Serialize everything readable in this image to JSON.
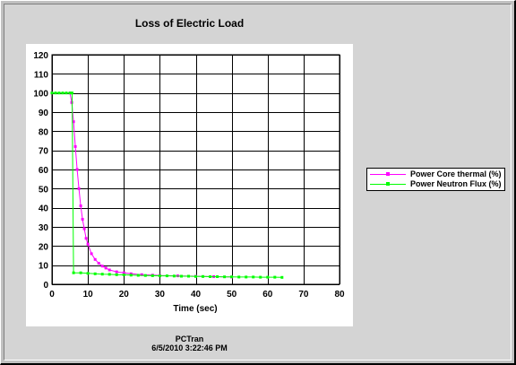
{
  "chart_data": {
    "type": "line",
    "title": "Loss of Electric Load",
    "xlabel": "Time (sec)",
    "ylabel": "",
    "xlim": [
      0,
      80
    ],
    "ylim": [
      0,
      120
    ],
    "xticks": [
      0,
      10,
      20,
      30,
      40,
      50,
      60,
      70,
      80
    ],
    "yticks": [
      0,
      10,
      20,
      30,
      40,
      50,
      60,
      70,
      80,
      90,
      100,
      110,
      120
    ],
    "grid": true,
    "legend_position": "right",
    "series": [
      {
        "name": "Power Core thermal (%)",
        "color": "#ff00ff",
        "x": [
          0,
          5,
          5.5,
          6,
          6.5,
          7,
          7.5,
          8,
          8.5,
          9,
          9.5,
          10,
          11,
          12,
          13,
          14,
          15,
          16,
          18,
          20,
          22,
          25,
          28,
          30,
          35,
          40,
          45,
          50
        ],
        "y": [
          100,
          100,
          95,
          85,
          72,
          60,
          50,
          41,
          34,
          29,
          24,
          21,
          16,
          13,
          11,
          9.5,
          8.5,
          7.5,
          6.5,
          6,
          5.5,
          5,
          4.8,
          4.6,
          4.4,
          4.2,
          4.0,
          3.8
        ]
      },
      {
        "name": "Power Neutron Flux (%)",
        "color": "#00ff00",
        "x": [
          0,
          1,
          2,
          3,
          4,
          5,
          5.6,
          6,
          8,
          10,
          12,
          14,
          16,
          18,
          20,
          22,
          24,
          26,
          28,
          30,
          32,
          34,
          36,
          38,
          40,
          42,
          44,
          46,
          48,
          50,
          52,
          54,
          56,
          58,
          60,
          62,
          64
        ],
        "y": [
          100,
          100,
          100,
          100,
          100,
          100,
          100,
          6,
          6,
          5.7,
          5.5,
          5.3,
          5.2,
          5,
          4.9,
          4.8,
          4.7,
          4.6,
          4.5,
          4.4,
          4.4,
          4.3,
          4.2,
          4.2,
          4.1,
          4.1,
          4,
          4,
          3.9,
          3.9,
          3.8,
          3.8,
          3.8,
          3.7,
          3.7,
          3.7,
          3.6
        ]
      }
    ]
  },
  "footer": {
    "line1": "PCTran",
    "line2": "6/5/2010 3:22:46 PM"
  }
}
